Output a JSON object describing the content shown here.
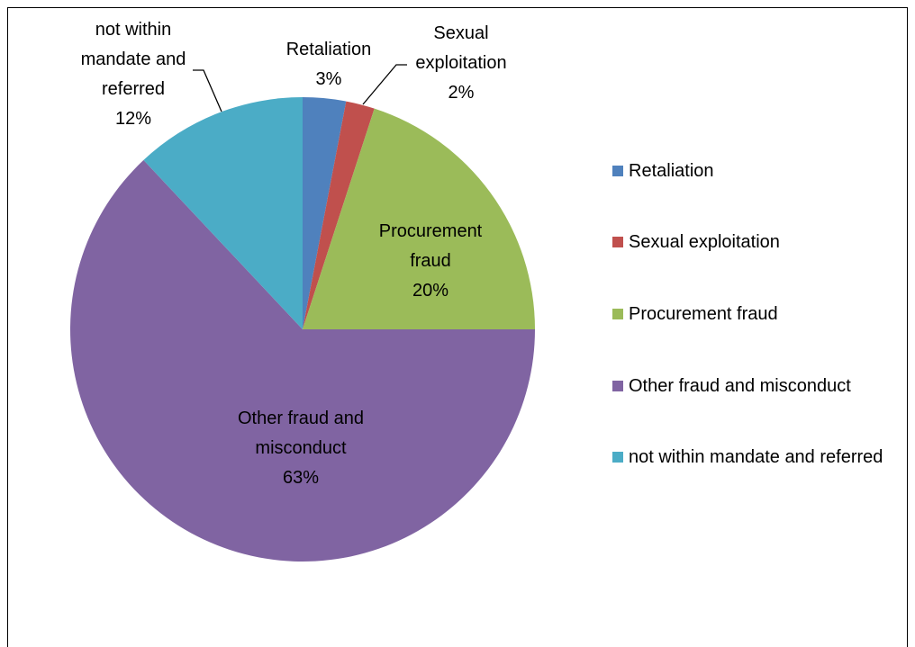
{
  "chart_data": {
    "type": "pie",
    "categories": [
      "Retaliation",
      "Sexual exploitation",
      "Procurement fraud",
      "Other fraud and misconduct",
      "not within mandate and referred"
    ],
    "values": [
      3,
      2,
      20,
      63,
      12
    ],
    "value_labels": [
      "3%",
      "2%",
      "20%",
      "63%",
      "12%"
    ],
    "colors": [
      "#4f81bd",
      "#c0504d",
      "#9bbb59",
      "#8064a2",
      "#4bacc6"
    ],
    "legend": "right"
  }
}
